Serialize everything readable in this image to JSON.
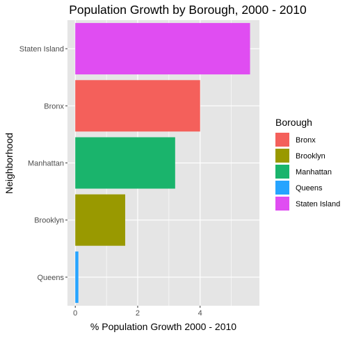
{
  "chart_data": {
    "type": "bar",
    "orientation": "horizontal",
    "title": "Population Growth by Borough, 2000 - 2010",
    "xlabel": "% Population Growth 2000 - 2010",
    "ylabel": "Neighborhood",
    "categories": [
      "Queens",
      "Brooklyn",
      "Manhattan",
      "Bronx",
      "Staten Island"
    ],
    "values": [
      0.1,
      1.6,
      3.2,
      4.0,
      5.6
    ],
    "colors": [
      "#26A4FF",
      "#999900",
      "#1AB46C",
      "#F4605B",
      "#E04DF2"
    ],
    "xlim": [
      -0.25,
      5.9
    ],
    "xticks": [
      0,
      2,
      4
    ],
    "xtick_labels": [
      "0",
      "2",
      "4"
    ],
    "grid": true,
    "background": "#E5E5E5",
    "legend": {
      "title": "Borough",
      "position": "right",
      "entries": [
        {
          "label": "Bronx",
          "color": "#F4605B"
        },
        {
          "label": "Brooklyn",
          "color": "#999900"
        },
        {
          "label": "Manhattan",
          "color": "#1AB46C"
        },
        {
          "label": "Queens",
          "color": "#26A4FF"
        },
        {
          "label": "Staten Island",
          "color": "#E04DF2"
        }
      ]
    }
  }
}
